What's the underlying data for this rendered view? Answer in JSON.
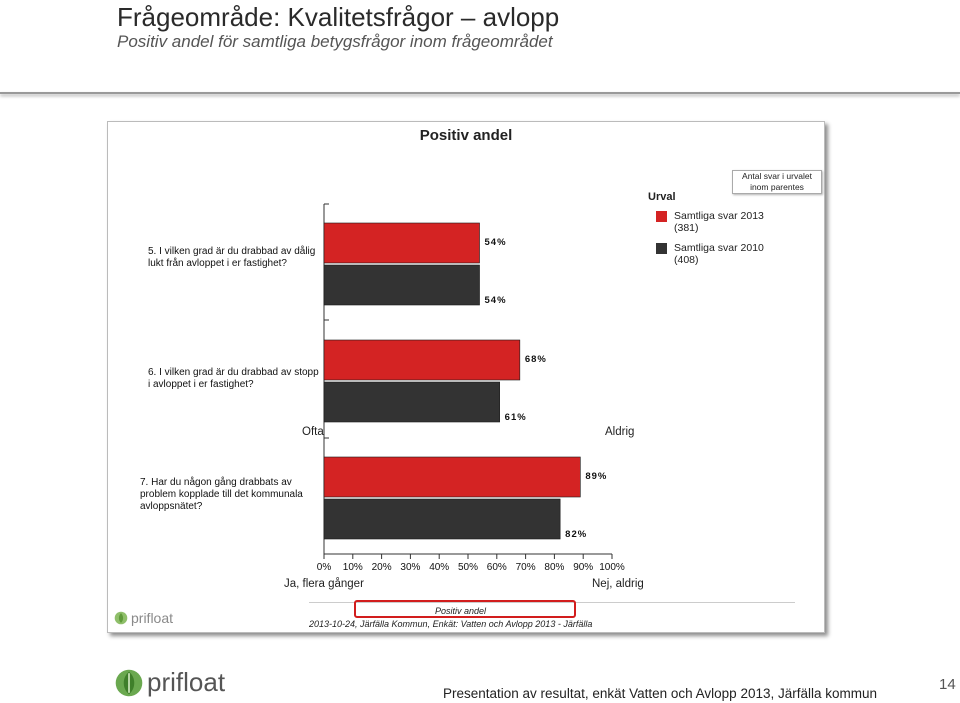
{
  "slide": {
    "title": "Frågeområde: Kvalitetsfrågor – avlopp",
    "subtitle": "Positiv andel för samtliga betygsfrågor inom frågeområdet",
    "caption": "Presentation av resultat, enkät Vatten och Avlopp 2013, Järfälla kommun",
    "page_number": "14",
    "logo_text": "prifloat"
  },
  "report": {
    "title": "Positiv andel",
    "note": "Antal svar i urvalet inom parentes",
    "legend_title": "Urval",
    "side_labels": {
      "left_upper": "Ofta",
      "right_upper": "Aldrig",
      "left_lower": "Ja, flera gånger",
      "right_lower": "Nej, aldrig"
    },
    "footer_label": "Positiv andel",
    "footer_info": "2013-10-24, Järfälla Kommun, Enkät: Vatten och Avlopp 2013 - Järfälla",
    "logo_text": "prifloat"
  },
  "chart_data": {
    "type": "bar",
    "orientation": "horizontal",
    "title": "Positiv andel",
    "categories": [
      "5. I vilken grad är du drabbad av dålig lukt från avloppet i er fastighet?",
      "6. I vilken grad är du drabbad av stopp i avloppet i er fastighet?",
      "7. Har du någon gång drabbats av problem kopplade till det kommunala avloppsnätet?"
    ],
    "series": [
      {
        "name": "Samtliga svar 2013 (381)",
        "color": "#d42323",
        "values": [
          54,
          68,
          89
        ]
      },
      {
        "name": "Samtliga svar 2010 (408)",
        "color": "#333333",
        "values": [
          54,
          61,
          82
        ]
      }
    ],
    "value_labels": [
      [
        "54%",
        "68%",
        "89%"
      ],
      [
        "54%",
        "61%",
        "82%"
      ]
    ],
    "xlim": [
      0,
      100
    ],
    "xticks": [
      "0%",
      "10%",
      "20%",
      "30%",
      "40%",
      "50%",
      "60%",
      "70%",
      "80%",
      "90%",
      "100%"
    ],
    "legend_title": "Urval",
    "legend_position": "top-right",
    "grid": false
  }
}
